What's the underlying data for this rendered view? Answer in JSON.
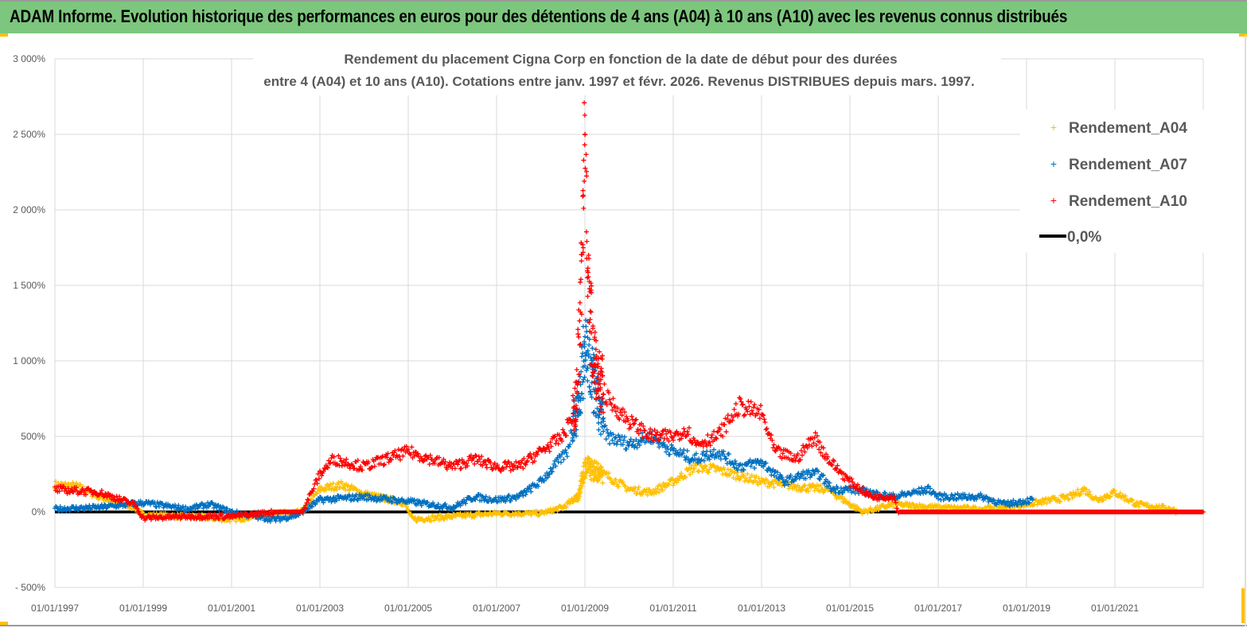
{
  "header": {
    "title": "ADAM Informe. Evolution historique des performances en euros pour des détentions de 4 ans (A04) à 10 ans (A10) avec les revenus connus distribués"
  },
  "chart_data": {
    "type": "scatter",
    "title_lines": [
      "Rendement du placement Cigna Corp en fonction de la date de début pour des durées",
      "entre 4 (A04) et 10 ans (A10).  Cotations entre janv. 1997 et févr. 2026. Revenus DISTRIBUES depuis mars. 1997."
    ],
    "xlabel": "",
    "ylabel": "",
    "xlim": [
      1997,
      2023
    ],
    "ylim": [
      -500,
      3000
    ],
    "y_ticks": [
      -500,
      0,
      500,
      1000,
      1500,
      2000,
      2500,
      3000
    ],
    "y_tick_labels": [
      "- 500%",
      "0%",
      "500%",
      "1 000%",
      "1 500%",
      "2 000%",
      "2 500%",
      "3 000%"
    ],
    "x_ticks": [
      1997,
      1999,
      2001,
      2003,
      2005,
      2007,
      2009,
      2011,
      2013,
      2015,
      2017,
      2019,
      2021
    ],
    "x_tick_labels": [
      "01/01/1997",
      "01/01/1999",
      "01/01/2001",
      "01/01/2003",
      "01/01/2005",
      "01/01/2007",
      "01/01/2009",
      "01/01/2011",
      "01/01/2013",
      "01/01/2015",
      "01/01/2017",
      "01/01/2019",
      "01/01/2021"
    ],
    "grid": true,
    "legend_position": "right",
    "series": [
      {
        "name": "Rendement_A04",
        "color": "#ffc000",
        "marker": "plus",
        "end": 2023,
        "points": [
          [
            1997,
            180
          ],
          [
            1997.5,
            170
          ],
          [
            1998,
            100
          ],
          [
            1998.8,
            30
          ],
          [
            1999,
            -20
          ],
          [
            2000,
            -30
          ],
          [
            2001,
            -50
          ],
          [
            2002,
            -10
          ],
          [
            2002.6,
            0
          ],
          [
            2003,
            150
          ],
          [
            2003.5,
            180
          ],
          [
            2004,
            120
          ],
          [
            2004.9,
            60
          ],
          [
            2005.1,
            -50
          ],
          [
            2006,
            -30
          ],
          [
            2007,
            -10
          ],
          [
            2008,
            -10
          ],
          [
            2008.5,
            30
          ],
          [
            2008.85,
            100
          ],
          [
            2009,
            300
          ],
          [
            2009.5,
            240
          ],
          [
            2010,
            150
          ],
          [
            2010.5,
            130
          ],
          [
            2011,
            200
          ],
          [
            2011.5,
            300
          ],
          [
            2012,
            280
          ],
          [
            2013,
            200
          ],
          [
            2014,
            160
          ],
          [
            2014.5,
            150
          ],
          [
            2015,
            50
          ],
          [
            2015.3,
            0
          ],
          [
            2016,
            50
          ],
          [
            2017,
            30
          ],
          [
            2018,
            20
          ],
          [
            2019,
            50
          ],
          [
            2020,
            100
          ],
          [
            2020.3,
            150
          ],
          [
            2020.6,
            80
          ],
          [
            2021,
            130
          ],
          [
            2021.5,
            50
          ],
          [
            2022.3,
            20
          ],
          [
            2022.4,
            0
          ],
          [
            2023,
            0
          ]
        ]
      },
      {
        "name": "Rendement_A07",
        "color": "#0070c0",
        "marker": "plus",
        "end": 2019.15,
        "points": [
          [
            1997,
            20
          ],
          [
            1998,
            30
          ],
          [
            1999,
            60
          ],
          [
            2000,
            20
          ],
          [
            2000.5,
            50
          ],
          [
            2001,
            0
          ],
          [
            2001.5,
            -30
          ],
          [
            2002,
            -50
          ],
          [
            2002.5,
            -20
          ],
          [
            2003,
            80
          ],
          [
            2004,
            100
          ],
          [
            2005,
            70
          ],
          [
            2006,
            30
          ],
          [
            2006.5,
            100
          ],
          [
            2007,
            80
          ],
          [
            2007.5,
            100
          ],
          [
            2008,
            200
          ],
          [
            2008.6,
            400
          ],
          [
            2008.9,
            800
          ],
          [
            2009,
            1100
          ],
          [
            2009.3,
            700
          ],
          [
            2009.5,
            500
          ],
          [
            2010,
            450
          ],
          [
            2010.5,
            500
          ],
          [
            2011,
            400
          ],
          [
            2011.5,
            350
          ],
          [
            2012,
            400
          ],
          [
            2012.5,
            300
          ],
          [
            2013,
            330
          ],
          [
            2013.5,
            200
          ],
          [
            2014,
            250
          ],
          [
            2014.3,
            250
          ],
          [
            2014.6,
            150
          ],
          [
            2015,
            150
          ],
          [
            2016,
            100
          ],
          [
            2016.8,
            150
          ],
          [
            2017,
            100
          ],
          [
            2018,
            100
          ],
          [
            2018.5,
            50
          ],
          [
            2019.15,
            80
          ]
        ]
      },
      {
        "name": "Rendement_A10",
        "color": "#ff0000",
        "marker": "plus",
        "end": 2023,
        "points": [
          [
            1997,
            150
          ],
          [
            1998,
            130
          ],
          [
            1998.8,
            50
          ],
          [
            1999,
            -40
          ],
          [
            2000,
            -30
          ],
          [
            2001,
            -30
          ],
          [
            2002,
            0
          ],
          [
            2002.6,
            0
          ],
          [
            2003,
            250
          ],
          [
            2003.3,
            350
          ],
          [
            2004,
            300
          ],
          [
            2004.5,
            350
          ],
          [
            2005,
            400
          ],
          [
            2006,
            300
          ],
          [
            2006.5,
            350
          ],
          [
            2007,
            300
          ],
          [
            2007.5,
            300
          ],
          [
            2008,
            400
          ],
          [
            2008.5,
            500
          ],
          [
            2008.8,
            700
          ],
          [
            2008.95,
            1700
          ],
          [
            2009,
            2700
          ],
          [
            2009.1,
            1300
          ],
          [
            2009.3,
            900
          ],
          [
            2009.5,
            750
          ],
          [
            2010,
            600
          ],
          [
            2010.5,
            500
          ],
          [
            2011,
            500
          ],
          [
            2011.3,
            550
          ],
          [
            2011.5,
            450
          ],
          [
            2012,
            500
          ],
          [
            2012.5,
            700
          ],
          [
            2013,
            650
          ],
          [
            2013.3,
            400
          ],
          [
            2013.8,
            350
          ],
          [
            2014.2,
            500
          ],
          [
            2014.5,
            350
          ],
          [
            2015,
            200
          ],
          [
            2015.5,
            100
          ],
          [
            2016,
            100
          ],
          [
            2016.1,
            0
          ],
          [
            2023,
            0
          ]
        ]
      }
    ],
    "reference_line": {
      "name": "0,0%",
      "value": 0,
      "color": "#000000"
    }
  }
}
